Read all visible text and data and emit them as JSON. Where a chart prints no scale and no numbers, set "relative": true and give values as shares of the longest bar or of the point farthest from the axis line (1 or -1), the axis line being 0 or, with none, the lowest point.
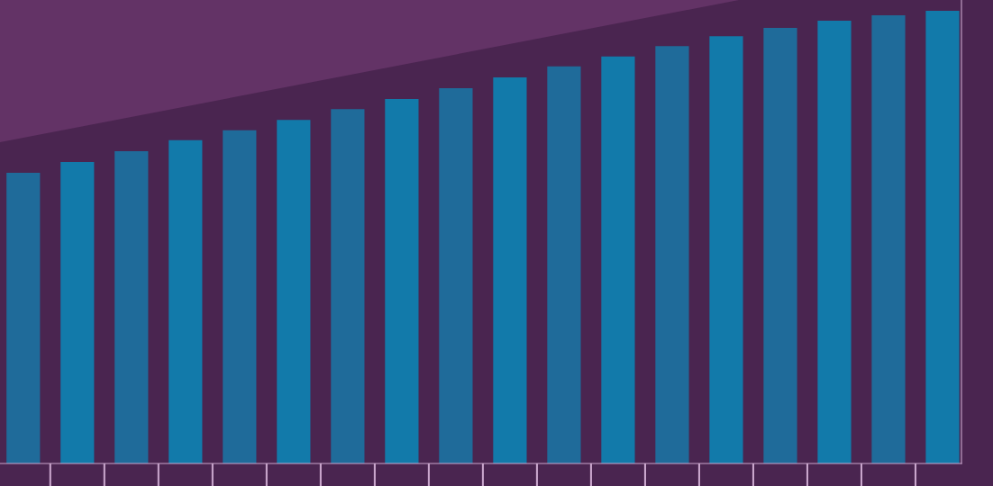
{
  "chart_data": {
    "type": "bar",
    "relative": true,
    "categories": [
      null,
      null,
      null,
      null,
      null,
      null,
      null,
      null,
      null,
      null,
      null,
      null,
      null,
      null,
      null,
      null,
      null,
      null
    ],
    "values": [
      0.642,
      0.666,
      0.69,
      0.714,
      0.736,
      0.759,
      0.783,
      0.805,
      0.829,
      0.853,
      0.877,
      0.899,
      0.922,
      0.944,
      0.962,
      0.978,
      0.99,
      1
    ],
    "colors": [
      "#1f6b9a",
      "#127aaa",
      "#1f6b9a",
      "#127aaa",
      "#1f6b9a",
      "#127aaa",
      "#1f6b9a",
      "#127aaa",
      "#1f6b9a",
      "#127aaa",
      "#1f6b9a",
      "#127aaa",
      "#1f6b9a",
      "#127aaa",
      "#1f6b9a",
      "#127aaa",
      "#1f6b9a",
      "#127aaa"
    ],
    "grid": false,
    "legend": false,
    "tick_labels": false
  }
}
